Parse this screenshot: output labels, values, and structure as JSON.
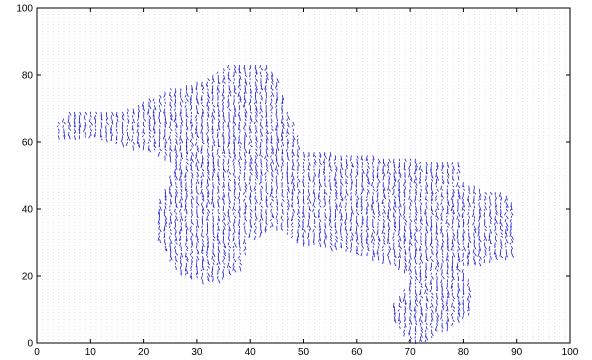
{
  "chart_data": {
    "type": "quiver",
    "title": "",
    "xlabel": "",
    "ylabel": "",
    "xlim": [
      0,
      100
    ],
    "ylim": [
      0,
      100
    ],
    "xticks": [
      "0",
      "10",
      "20",
      "30",
      "40",
      "50",
      "60",
      "70",
      "80",
      "90",
      "100"
    ],
    "yticks": [
      "0",
      "20",
      "40",
      "60",
      "80",
      "100"
    ],
    "grid": false,
    "legend": "none",
    "arrow_color": "#1f1fd6",
    "axes_color": "#000000",
    "background_field": {
      "x_range": [
        0,
        100
      ],
      "y_range": [
        0,
        100
      ],
      "step": 1,
      "magnitude": 0
    },
    "active_region": {
      "description_points": [
        [
          4,
          66
        ],
        [
          6,
          69
        ],
        [
          9,
          70
        ],
        [
          14,
          69
        ],
        [
          17,
          70
        ],
        [
          25,
          76
        ],
        [
          32,
          79
        ],
        [
          36,
          83
        ],
        [
          43,
          84
        ],
        [
          45,
          80
        ],
        [
          47,
          70
        ],
        [
          49,
          63
        ],
        [
          50,
          58
        ],
        [
          56,
          57
        ],
        [
          64,
          56
        ],
        [
          72,
          55
        ],
        [
          80,
          55
        ],
        [
          79,
          49
        ],
        [
          84,
          46
        ],
        [
          88,
          45
        ],
        [
          90,
          40
        ],
        [
          90,
          33
        ],
        [
          89,
          26
        ],
        [
          86,
          25
        ],
        [
          84,
          24
        ],
        [
          80,
          23
        ],
        [
          82,
          17
        ],
        [
          82,
          10
        ],
        [
          79,
          6
        ],
        [
          75,
          3
        ],
        [
          73,
          0
        ],
        [
          70,
          1
        ],
        [
          67,
          7
        ],
        [
          67,
          12
        ],
        [
          69,
          16
        ],
        [
          70,
          20
        ],
        [
          67,
          24
        ],
        [
          60,
          27
        ],
        [
          52,
          30
        ],
        [
          50,
          30
        ],
        [
          48,
          32
        ],
        [
          45,
          35
        ],
        [
          40,
          31
        ],
        [
          38,
          22
        ],
        [
          35,
          19
        ],
        [
          31,
          19
        ],
        [
          27,
          21
        ],
        [
          25,
          25
        ],
        [
          23,
          31
        ],
        [
          23,
          43
        ],
        [
          26,
          54
        ],
        [
          21,
          58
        ],
        [
          15,
          60
        ],
        [
          8,
          62
        ],
        [
          4,
          62
        ]
      ],
      "vector_mean_dx": 0.15,
      "vector_mean_dy": -1.6,
      "vector_spread": 0.9
    }
  }
}
